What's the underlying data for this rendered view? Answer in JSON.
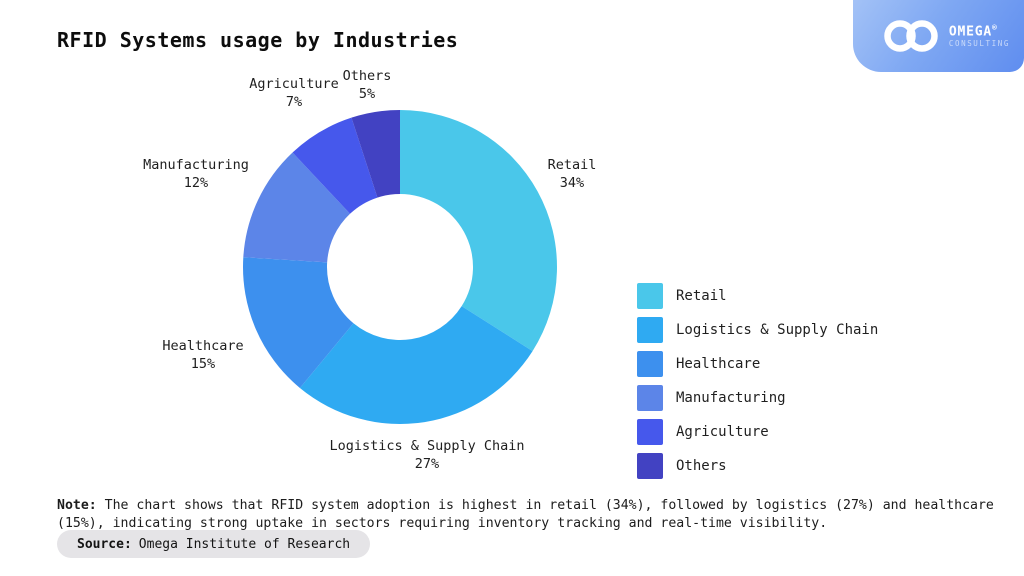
{
  "title": "RFID Systems usage by Industries",
  "brand": {
    "name": "OMEGA",
    "reg": "®",
    "subtitle": "CONSULTING"
  },
  "chart_data": {
    "type": "pie",
    "subtype": "donut",
    "title": "RFID Systems usage by Industries",
    "direction": "clockwise",
    "start_angle_deg": 0,
    "legend_position": "right",
    "segments": [
      {
        "label": "Retail",
        "value": 34,
        "pct_label": "34%",
        "color": "#4ac7ea"
      },
      {
        "label": "Logistics & Supply Chain",
        "value": 27,
        "pct_label": "27%",
        "color": "#2faaf2"
      },
      {
        "label": "Healthcare",
        "value": 15,
        "pct_label": "15%",
        "color": "#3d90ee"
      },
      {
        "label": "Manufacturing",
        "value": 12,
        "pct_label": "12%",
        "color": "#5c85e8"
      },
      {
        "label": "Agriculture",
        "value": 7,
        "pct_label": "7%",
        "color": "#4658ec"
      },
      {
        "label": "Others",
        "value": 5,
        "pct_label": "5%",
        "color": "#4242c2"
      }
    ]
  },
  "note": {
    "prefix": "Note:",
    "text": " The chart shows that RFID system adoption is highest in retail (34%), followed by logistics (27%) and healthcare (15%), indicating strong uptake in sectors requiring inventory tracking and real-time visibility."
  },
  "source": {
    "prefix": "Source:",
    "text": "Omega Institute of Research"
  }
}
